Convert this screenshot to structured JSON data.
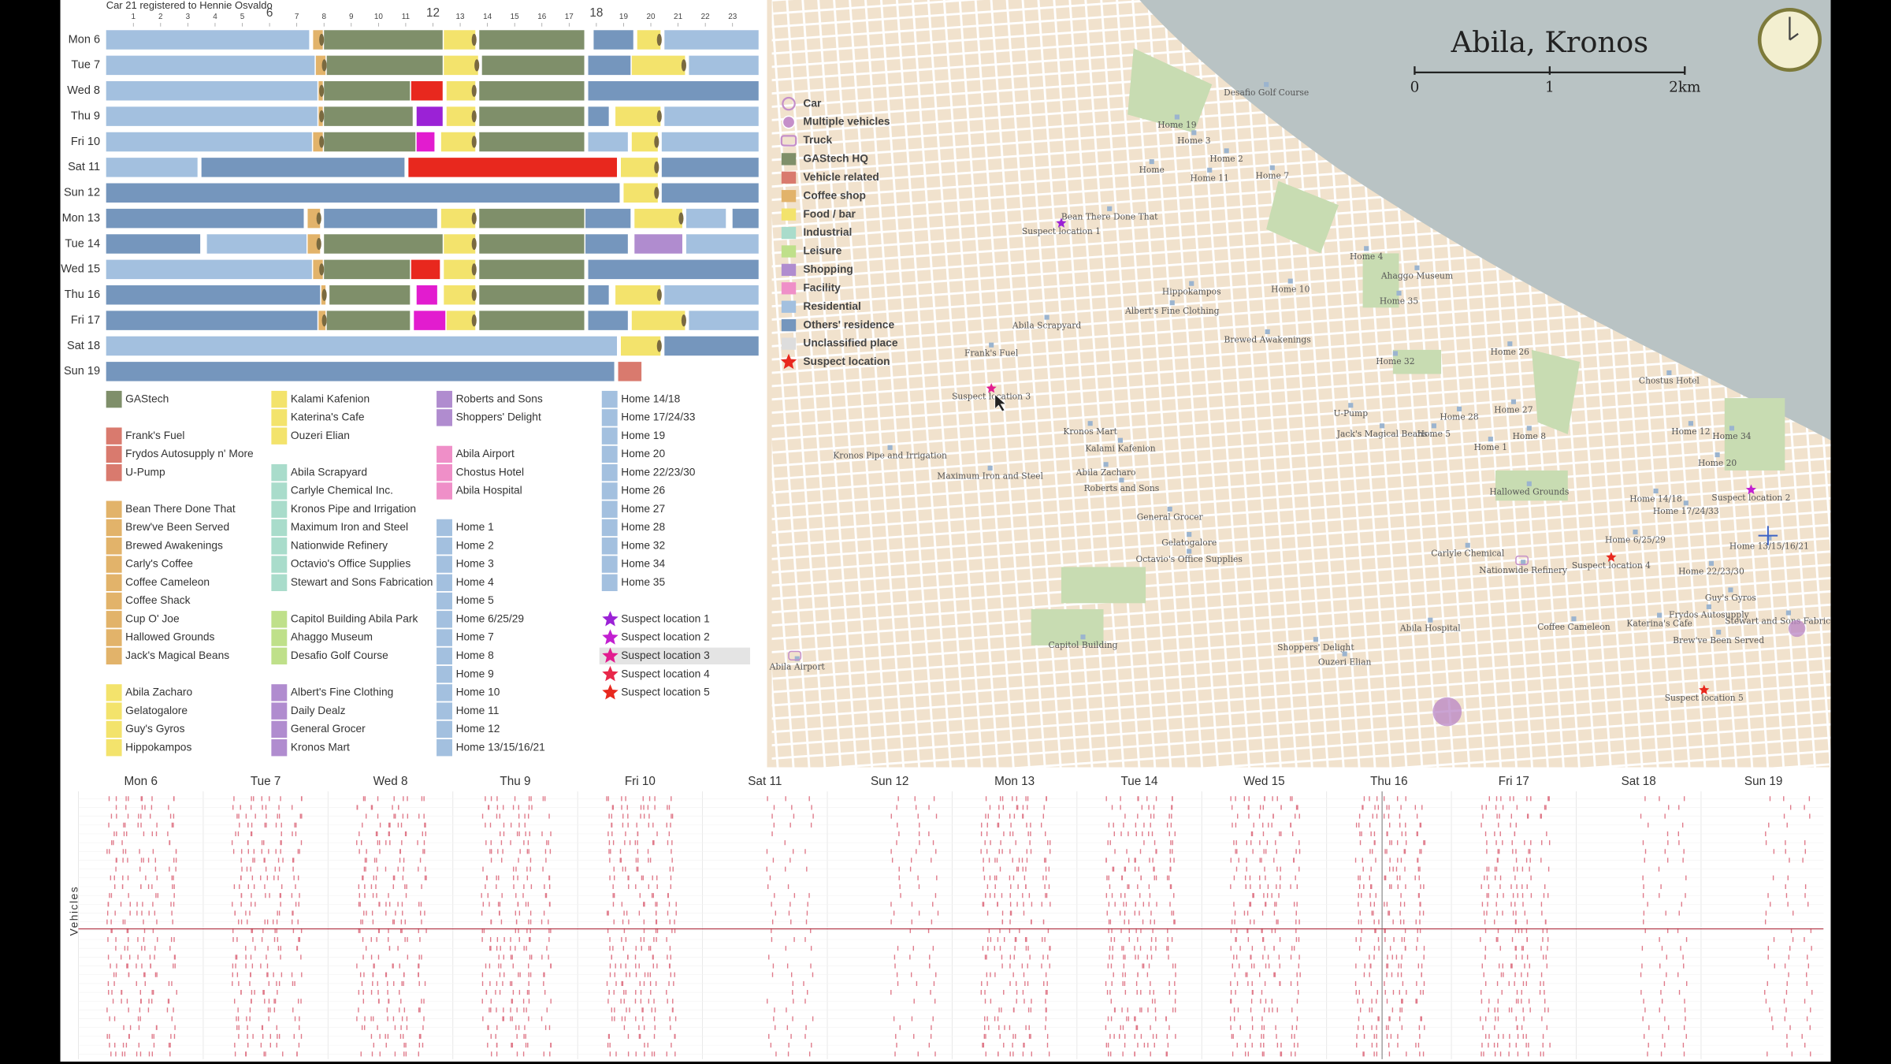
{
  "timeline": {
    "header": "Car 21 registered to Hennie Osvaldo",
    "hours": [
      1,
      2,
      3,
      4,
      5,
      6,
      7,
      8,
      9,
      10,
      11,
      12,
      13,
      14,
      15,
      16,
      17,
      18,
      19,
      20,
      21,
      22,
      23
    ],
    "major_hours": [
      6,
      12,
      18
    ],
    "days": [
      {
        "label": "Mon 6",
        "segments": [
          [
            0,
            7.5,
            "#a3c0df"
          ],
          [
            7.6,
            8,
            "#e2b36a"
          ],
          [
            8,
            12.4,
            "#7f8f6a"
          ],
          [
            12.4,
            13.6,
            "#f3e36c"
          ],
          [
            13.7,
            17.6,
            "#7f8f6a"
          ],
          [
            17.9,
            19.4,
            "#7596bd"
          ],
          [
            19.5,
            20.4,
            "#f3e36c"
          ],
          [
            20.5,
            24,
            "#a3c0df"
          ]
        ]
      },
      {
        "label": "Tue 7",
        "segments": [
          [
            0,
            7.7,
            "#a3c0df"
          ],
          [
            7.7,
            8.1,
            "#e2b36a"
          ],
          [
            8.1,
            12.4,
            "#7f8f6a"
          ],
          [
            12.4,
            13.7,
            "#f3e36c"
          ],
          [
            13.8,
            17.6,
            "#7f8f6a"
          ],
          [
            17.7,
            19.3,
            "#7596bd"
          ],
          [
            19.3,
            21.3,
            "#f3e36c"
          ],
          [
            21.4,
            24,
            "#a3c0df"
          ]
        ]
      },
      {
        "label": "Wed 8",
        "segments": [
          [
            0,
            7.8,
            "#a3c0df"
          ],
          [
            7.8,
            8,
            "#e2b36a"
          ],
          [
            8,
            11.2,
            "#7f8f6a"
          ],
          [
            11.2,
            12.4,
            "#e8281e"
          ],
          [
            12.5,
            13.6,
            "#f3e36c"
          ],
          [
            13.7,
            17.6,
            "#7f8f6a"
          ],
          [
            17.7,
            24,
            "#7596bd"
          ]
        ]
      },
      {
        "label": "Thu 9",
        "segments": [
          [
            0,
            7.8,
            "#a3c0df"
          ],
          [
            7.8,
            8,
            "#e2b36a"
          ],
          [
            8,
            11.3,
            "#7f8f6a"
          ],
          [
            11.4,
            12.4,
            "#9b22d6"
          ],
          [
            12.5,
            13.6,
            "#f3e36c"
          ],
          [
            13.7,
            17.6,
            "#7f8f6a"
          ],
          [
            17.7,
            18.5,
            "#7596bd"
          ],
          [
            18.7,
            20.4,
            "#f3e36c"
          ],
          [
            20.5,
            24,
            "#a3c0df"
          ]
        ]
      },
      {
        "label": "Fri 10",
        "segments": [
          [
            0,
            7.6,
            "#a3c0df"
          ],
          [
            7.6,
            8,
            "#e2b36a"
          ],
          [
            8,
            11.4,
            "#7f8f6a"
          ],
          [
            11.4,
            12.1,
            "#e21ccf"
          ],
          [
            12.3,
            13.6,
            "#f3e36c"
          ],
          [
            13.7,
            17.6,
            "#7f8f6a"
          ],
          [
            17.7,
            19.2,
            "#a3c0df"
          ],
          [
            19.3,
            20.3,
            "#f3e36c"
          ],
          [
            20.4,
            24,
            "#a3c0df"
          ]
        ]
      },
      {
        "label": "Sat 11",
        "segments": [
          [
            0,
            3.4,
            "#a3c0df"
          ],
          [
            3.5,
            11,
            "#7596bd"
          ],
          [
            11.1,
            18.8,
            "#e8281e"
          ],
          [
            18.9,
            20.3,
            "#f3e36c"
          ],
          [
            20.4,
            24,
            "#7596bd"
          ]
        ]
      },
      {
        "label": "Sun 12",
        "segments": [
          [
            0,
            18.9,
            "#7596bd"
          ],
          [
            19,
            20.3,
            "#f3e36c"
          ],
          [
            20.4,
            24,
            "#7596bd"
          ]
        ]
      },
      {
        "label": "Mon 13",
        "segments": [
          [
            0,
            7.3,
            "#7596bd"
          ],
          [
            7.4,
            7.9,
            "#e2b36a"
          ],
          [
            8,
            12.2,
            "#7596bd"
          ],
          [
            12.3,
            13.6,
            "#f3e36c"
          ],
          [
            13.7,
            17.6,
            "#7f8f6a"
          ],
          [
            17.6,
            19.3,
            "#7596bd"
          ],
          [
            19.4,
            21.2,
            "#f3e36c"
          ],
          [
            21.3,
            22.8,
            "#a3c0df"
          ],
          [
            23,
            24,
            "#7596bd"
          ]
        ]
      },
      {
        "label": "Tue 14",
        "segments": [
          [
            0,
            3.5,
            "#7596bd"
          ],
          [
            3.7,
            7.4,
            "#a3c0df"
          ],
          [
            7.4,
            7.9,
            "#e2b36a"
          ],
          [
            8,
            12.4,
            "#7f8f6a"
          ],
          [
            12.4,
            13.6,
            "#f3e36c"
          ],
          [
            13.7,
            17.6,
            "#7f8f6a"
          ],
          [
            17.6,
            19.2,
            "#7596bd"
          ],
          [
            19.4,
            21.2,
            "#b08ccf"
          ],
          [
            21.3,
            24,
            "#a3c0df"
          ]
        ]
      },
      {
        "label": "Wed 15",
        "segments": [
          [
            0,
            7.6,
            "#a3c0df"
          ],
          [
            7.6,
            8,
            "#e2b36a"
          ],
          [
            8,
            11.2,
            "#7f8f6a"
          ],
          [
            11.2,
            12.3,
            "#e8281e"
          ],
          [
            12.4,
            13.6,
            "#f3e36c"
          ],
          [
            13.7,
            17.6,
            "#7f8f6a"
          ],
          [
            17.7,
            24,
            "#7596bd"
          ]
        ]
      },
      {
        "label": "Thu 16",
        "segments": [
          [
            0,
            7.9,
            "#7596bd"
          ],
          [
            7.9,
            8.1,
            "#e2b36a"
          ],
          [
            8.2,
            11.2,
            "#7f8f6a"
          ],
          [
            11.4,
            12.2,
            "#e21ccf"
          ],
          [
            12.4,
            13.6,
            "#f3e36c"
          ],
          [
            13.7,
            17.6,
            "#7f8f6a"
          ],
          [
            17.7,
            18.5,
            "#7596bd"
          ],
          [
            18.7,
            20.4,
            "#f3e36c"
          ],
          [
            20.5,
            24,
            "#a3c0df"
          ]
        ]
      },
      {
        "label": "Fri 17",
        "segments": [
          [
            0,
            7.8,
            "#7596bd"
          ],
          [
            7.8,
            8.1,
            "#e2b36a"
          ],
          [
            8.1,
            11.2,
            "#7f8f6a"
          ],
          [
            11.3,
            12.5,
            "#e21ccf"
          ],
          [
            12.5,
            13.6,
            "#f3e36c"
          ],
          [
            13.7,
            17.6,
            "#7f8f6a"
          ],
          [
            17.7,
            19.2,
            "#7596bd"
          ],
          [
            19.3,
            21.3,
            "#f3e36c"
          ],
          [
            21.4,
            24,
            "#a3c0df"
          ]
        ]
      },
      {
        "label": "Sat 18",
        "segments": [
          [
            0,
            18.8,
            "#a3c0df"
          ],
          [
            18.9,
            20.4,
            "#f3e36c"
          ],
          [
            20.5,
            24,
            "#7596bd"
          ]
        ]
      },
      {
        "label": "Sun 19",
        "segments": [
          [
            0,
            18.7,
            "#7596bd"
          ],
          [
            18.8,
            19.7,
            "#d97a6e"
          ]
        ]
      }
    ]
  },
  "legend": {
    "columns": [
      [
        {
          "color": "#7f8f6a",
          "items": [
            "GAStech"
          ]
        },
        {
          "color": "#d97a6e",
          "items": [
            "Frank's Fuel",
            "Frydos Autosupply n' More",
            "U-Pump"
          ]
        },
        {
          "color": "#e2b36a",
          "items": [
            "Bean There Done That",
            "Brew've Been Served",
            "Brewed Awakenings",
            "Carly's Coffee",
            "Coffee Cameleon",
            "Coffee Shack",
            "Cup O' Joe",
            "Hallowed Grounds",
            "Jack's Magical Beans"
          ]
        },
        {
          "color": "#f3e36c",
          "items": [
            "Abila Zacharo",
            "Gelatogalore",
            "Guy's Gyros",
            "Hippokampos"
          ]
        }
      ],
      [
        {
          "color": "#f3e36c",
          "items": [
            "Kalami Kafenion",
            "Katerina's Cafe",
            "Ouzeri Elian"
          ]
        },
        {
          "color": "#a9dccb",
          "items": [
            "Abila Scrapyard",
            "Carlyle Chemical Inc.",
            "Kronos Pipe and Irrigation",
            "Maximum Iron and Steel",
            "Nationwide Refinery",
            "Octavio's Office Supplies",
            "Stewart and Sons Fabrication"
          ]
        },
        {
          "color": "#bfe08a",
          "items": [
            "Capitol Building Abila Park",
            "Ahaggo Museum",
            "Desafio Golf Course"
          ]
        },
        {
          "color": "#b08ccf",
          "items": [
            "Albert's Fine Clothing",
            "Daily Dealz",
            "General Grocer",
            "Kronos Mart"
          ]
        }
      ],
      [
        {
          "color": "#b08ccf",
          "items": [
            "Roberts and Sons",
            "Shoppers' Delight"
          ]
        },
        {
          "color": "#ef8fc8",
          "items": [
            "Abila Airport",
            "Chostus Hotel",
            "Abila Hospital"
          ]
        },
        {
          "color": "#a3c0df",
          "items": [
            "Home 1",
            "Home 2",
            "Home 3",
            "Home 4",
            "Home 5",
            "Home 6/25/29",
            "Home 7",
            "Home 8",
            "Home 9",
            "Home 10",
            "Home 11",
            "Home 12",
            "Home 13/15/16/21"
          ]
        }
      ],
      [
        {
          "color": "#a3c0df",
          "items": [
            "Home 14/18",
            "Home 17/24/33",
            "Home 19",
            "Home 20",
            "Home 22/23/30",
            "Home 26",
            "Home 27",
            "Home 28",
            "Home 32",
            "Home 34",
            "Home 35"
          ]
        },
        {
          "color": "star",
          "items": [
            "Suspect location 1",
            "Suspect location 2",
            "Suspect location 3",
            "Suspect location 4",
            "Suspect location 5"
          ],
          "colors": [
            "#9b22d6",
            "#c21fd0",
            "#e21c8f",
            "#e8284a",
            "#e8281e"
          ]
        }
      ]
    ]
  },
  "map": {
    "title": "Abila, Kronos",
    "scale": [
      "0",
      "1",
      "2km"
    ],
    "legend": [
      {
        "label": "Car",
        "symbol": "circle",
        "color": "#c58fc9"
      },
      {
        "label": "Multiple vehicles",
        "symbol": "multi",
        "color": "#c58fc9"
      },
      {
        "label": "Truck",
        "symbol": "truck",
        "color": "#c58fc9"
      },
      {
        "label": "GAStech HQ",
        "symbol": "square",
        "color": "#7f8f6a"
      },
      {
        "label": "Vehicle related",
        "symbol": "square",
        "color": "#d97a6e"
      },
      {
        "label": "Coffee shop",
        "symbol": "square",
        "color": "#e2b36a"
      },
      {
        "label": "Food / bar",
        "symbol": "square",
        "color": "#f3e36c"
      },
      {
        "label": "Industrial",
        "symbol": "square",
        "color": "#a9dccb"
      },
      {
        "label": "Leisure",
        "symbol": "square",
        "color": "#bfe08a"
      },
      {
        "label": "Shopping",
        "symbol": "square",
        "color": "#b08ccf"
      },
      {
        "label": "Facility",
        "symbol": "square",
        "color": "#ef8fc8"
      },
      {
        "label": "Residential",
        "symbol": "square",
        "color": "#a3c0df"
      },
      {
        "label": "Others' residence",
        "symbol": "square",
        "color": "#7596bd"
      },
      {
        "label": "Unclassified place",
        "symbol": "square",
        "color": "#dddddd"
      },
      {
        "label": "Suspect location",
        "symbol": "star",
        "color": "#e8281e"
      }
    ],
    "places": [
      "Desafio Golf Course",
      "Home 19",
      "Home 3",
      "Home 2",
      "Home",
      "Home 11",
      "Home 7",
      "Bean There Done That",
      "Suspect location 1",
      "Home 4",
      "Ahaggo Museum",
      "Home 10",
      "Hippokampos",
      "Home 35",
      "Albert's Fine Clothing",
      "Abila Scrapyard",
      "Brewed Awakenings",
      "Frank's Fuel",
      "Home 26",
      "Home 32",
      "Chostus Hotel",
      "Suspect location 3",
      "U-Pump",
      "Home 28",
      "Home 27",
      "Jack's Magical Beans",
      "Home 5",
      "Home 8",
      "Home 12",
      "Home 34",
      "Kronos Mart",
      "Kalami Kafenion",
      "Home 1",
      "Kronos Pipe and Irrigation",
      "Home 20",
      "Abila Zacharo",
      "Maximum Iron and Steel",
      "Roberts and Sons",
      "Hallowed Grounds",
      "Home 14/18",
      "Suspect location 2",
      "Home 17/24/33",
      "General Grocer",
      "Home 6/25/29",
      "Gelatogalore",
      "Home 13/15/16/21",
      "Carlyle Chemical",
      "Octavio's Office Supplies",
      "Suspect location 4",
      "Nationwide Refinery",
      "Home 22/23/30",
      "Guy's Gyros",
      "Frydos Autosupply",
      "Stewart and Sons Fabrication",
      "Katerina's Cafe",
      "Coffee Cameleon",
      "Abila Hospital",
      "Brew've Been Served",
      "Capitol Building",
      "Shoppers' Delight",
      "Ouzeri Elian",
      "Abila Airport",
      "Suspect location 5"
    ]
  },
  "activity": {
    "days": [
      "Mon 6",
      "Tue 7",
      "Wed 8",
      "Thu 9",
      "Fri 10",
      "Sat 11",
      "Sun 12",
      "Mon 13",
      "Tue 14",
      "Wed 15",
      "Thu 16",
      "Fri 17",
      "Sat 18",
      "Sun 19"
    ],
    "axis_label": "Vehicles"
  }
}
